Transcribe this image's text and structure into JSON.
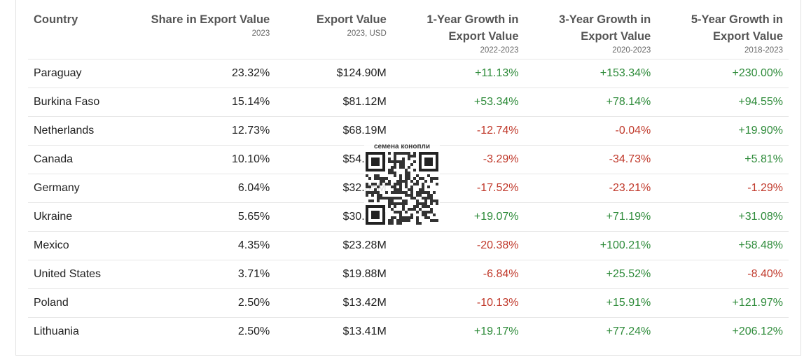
{
  "table": {
    "headers": [
      {
        "title": "Country",
        "sub": ""
      },
      {
        "title": "Share in Export Value",
        "sub": "2023"
      },
      {
        "title": "Export Value",
        "sub": "2023, USD"
      },
      {
        "title": "1-Year Growth in Export Value",
        "sub": "2022-2023"
      },
      {
        "title": "3-Year Growth in Export Value",
        "sub": "2020-2023"
      },
      {
        "title": "5-Year Growth in Export Value",
        "sub": "2018-2023"
      }
    ],
    "rows": [
      {
        "country": "Paraguay",
        "share": "23.32%",
        "value": "$124.90M",
        "g1": "+11.13%",
        "g3": "+153.34%",
        "g5": "+230.00%"
      },
      {
        "country": "Burkina Faso",
        "share": "15.14%",
        "value": "$81.12M",
        "g1": "+53.34%",
        "g3": "+78.14%",
        "g5": "+94.55%"
      },
      {
        "country": "Netherlands",
        "share": "12.73%",
        "value": "$68.19M",
        "g1": "-12.74%",
        "g3": "-0.04%",
        "g5": "+19.90%"
      },
      {
        "country": "Canada",
        "share": "10.10%",
        "value": "$54.12M",
        "g1": "-3.29%",
        "g3": "-34.73%",
        "g5": "+5.81%"
      },
      {
        "country": "Germany",
        "share": "6.04%",
        "value": "$32.35M",
        "g1": "-17.52%",
        "g3": "-23.21%",
        "g5": "-1.29%"
      },
      {
        "country": "Ukraine",
        "share": "5.65%",
        "value": "$30.26M",
        "g1": "+19.07%",
        "g3": "+71.19%",
        "g5": "+31.08%"
      },
      {
        "country": "Mexico",
        "share": "4.35%",
        "value": "$23.28M",
        "g1": "-20.38%",
        "g3": "+100.21%",
        "g5": "+58.48%"
      },
      {
        "country": "United States",
        "share": "3.71%",
        "value": "$19.88M",
        "g1": "-6.84%",
        "g3": "+25.52%",
        "g5": "-8.40%"
      },
      {
        "country": "Poland",
        "share": "2.50%",
        "value": "$13.42M",
        "g1": "-10.13%",
        "g3": "+15.91%",
        "g5": "+121.97%"
      },
      {
        "country": "Lithuania",
        "share": "2.50%",
        "value": "$13.41M",
        "g1": "+19.17%",
        "g3": "+77.24%",
        "g5": "+206.12%"
      }
    ]
  },
  "watermark": {
    "caption": "семена конопли",
    "icon": "qr-code-icon"
  },
  "colors": {
    "positive": "#2e8b3a",
    "negative": "#c0392b",
    "header": "#555555",
    "border": "#e6e6e6"
  }
}
